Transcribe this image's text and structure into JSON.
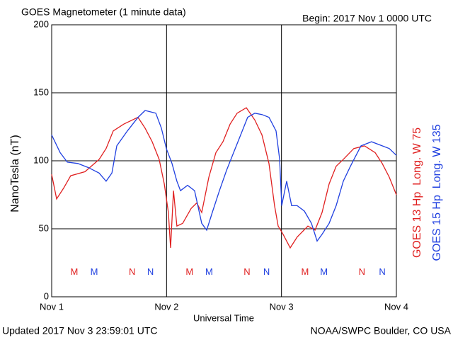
{
  "chart_data": {
    "type": "line",
    "title": "GOES Magnetometer (1 minute data)",
    "subtitle": "Begin:  2017 Nov 1 0000 UTC",
    "y_label": "NanoTesla (nT)",
    "x_label": "Universal Time",
    "footer_left": "Updated 2017  Nov  3 23:59:01 UTC",
    "footer_right": "NOAA/SWPC Boulder, CO USA",
    "xlim": [
      0,
      3
    ],
    "xticks": [
      {
        "value": 0,
        "label": "Nov 1"
      },
      {
        "value": 1,
        "label": "Nov 2"
      },
      {
        "value": 2,
        "label": "Nov 3"
      },
      {
        "value": 3,
        "label": "Nov 4"
      }
    ],
    "ylim": [
      0,
      200
    ],
    "yticks": [
      0,
      50,
      100,
      150,
      200
    ],
    "grid": true,
    "series": [
      {
        "name": "GOES 13 Hp  Long. W 75",
        "color": "#e02020",
        "x": [
          0,
          0.043,
          0.105,
          0.166,
          0.29,
          0.413,
          0.474,
          0.536,
          0.628,
          0.751,
          0.813,
          0.875,
          0.936,
          0.98,
          1.016,
          1.035,
          1.06,
          1.09,
          1.14,
          1.214,
          1.263,
          1.306,
          1.368,
          1.429,
          1.491,
          1.553,
          1.614,
          1.694,
          1.768,
          1.83,
          1.891,
          1.94,
          1.971,
          2.014,
          2.076,
          2.137,
          2.23,
          2.292,
          2.353,
          2.415,
          2.476,
          2.538,
          2.63,
          2.723,
          2.815,
          2.877,
          2.938,
          3
        ],
        "values": [
          90,
          72,
          80,
          89,
          92,
          101,
          109,
          122,
          127,
          132,
          124,
          114,
          101,
          83,
          62,
          36,
          78,
          52,
          54,
          65,
          69,
          62,
          88,
          106,
          114,
          127,
          135,
          139,
          130,
          119,
          98,
          67,
          52,
          46,
          36,
          44,
          52,
          49,
          62,
          83,
          96,
          101,
          109,
          111,
          106,
          98,
          88,
          75
        ]
      },
      {
        "name": "GOES 15 Hp  Long. W 135",
        "color": "#2040e0",
        "x": [
          0,
          0.074,
          0.136,
          0.228,
          0.32,
          0.413,
          0.474,
          0.524,
          0.567,
          0.659,
          0.752,
          0.813,
          0.906,
          0.955,
          0.998,
          1.047,
          1.09,
          1.121,
          1.183,
          1.244,
          1.306,
          1.349,
          1.398,
          1.46,
          1.522,
          1.583,
          1.645,
          1.706,
          1.768,
          1.83,
          1.891,
          1.953,
          1.984,
          2.002,
          2.045,
          2.088,
          2.137,
          2.199,
          2.261,
          2.31,
          2.353,
          2.415,
          2.476,
          2.538,
          2.6,
          2.692,
          2.784,
          2.877,
          2.938,
          3
        ],
        "values": [
          119,
          106,
          99,
          98,
          95,
          91,
          85,
          91,
          111,
          122,
          132,
          137,
          135,
          124,
          109,
          98,
          85,
          78,
          82,
          78,
          54,
          49,
          62,
          78,
          93,
          106,
          119,
          132,
          135,
          134,
          132,
          122,
          101,
          67,
          85,
          67,
          67,
          63,
          54,
          41,
          46,
          54,
          67,
          85,
          96,
          111,
          114,
          111,
          109,
          104
        ]
      }
    ],
    "annotations": [
      {
        "text": "M",
        "x": 0.197,
        "y": 18,
        "color": "#e02020"
      },
      {
        "text": "M",
        "x": 0.37,
        "y": 18,
        "color": "#2040e0"
      },
      {
        "text": "N",
        "x": 0.7,
        "y": 18,
        "color": "#e02020"
      },
      {
        "text": "N",
        "x": 0.86,
        "y": 18,
        "color": "#2040e0"
      },
      {
        "text": "M",
        "x": 1.2,
        "y": 18,
        "color": "#e02020"
      },
      {
        "text": "M",
        "x": 1.37,
        "y": 18,
        "color": "#2040e0"
      },
      {
        "text": "N",
        "x": 1.7,
        "y": 18,
        "color": "#e02020"
      },
      {
        "text": "N",
        "x": 1.87,
        "y": 18,
        "color": "#2040e0"
      },
      {
        "text": "M",
        "x": 2.205,
        "y": 18,
        "color": "#e02020"
      },
      {
        "text": "M",
        "x": 2.37,
        "y": 18,
        "color": "#2040e0"
      },
      {
        "text": "N",
        "x": 2.7,
        "y": 18,
        "color": "#e02020"
      },
      {
        "text": "N",
        "x": 2.877,
        "y": 18,
        "color": "#2040e0"
      }
    ]
  }
}
